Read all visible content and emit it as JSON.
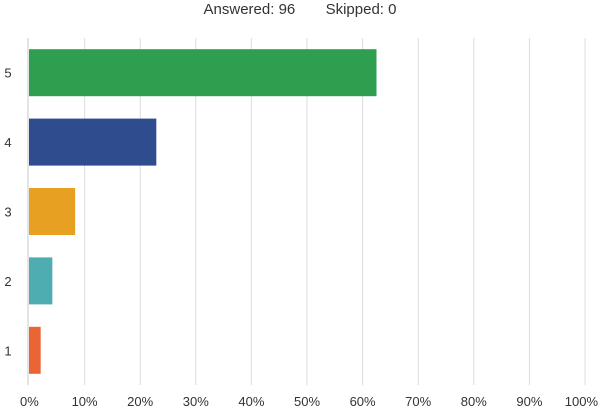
{
  "summary": {
    "answered_label": "Answered:",
    "answered_value": "96",
    "skipped_label": "Skipped:",
    "skipped_value": "0"
  },
  "chart_data": {
    "type": "bar",
    "orientation": "horizontal",
    "categories": [
      "5",
      "4",
      "3",
      "2",
      "1"
    ],
    "values": [
      62.5,
      22.9,
      8.3,
      4.2,
      2.1
    ],
    "colors": [
      "#2e9e4f",
      "#2f4c8f",
      "#e8a022",
      "#4eadb0",
      "#ea6434"
    ],
    "xlim": [
      0,
      100
    ],
    "xticks": [
      "0%",
      "10%",
      "20%",
      "30%",
      "40%",
      "50%",
      "60%",
      "70%",
      "80%",
      "90%",
      "100%"
    ],
    "grid": true,
    "legend": "none"
  }
}
